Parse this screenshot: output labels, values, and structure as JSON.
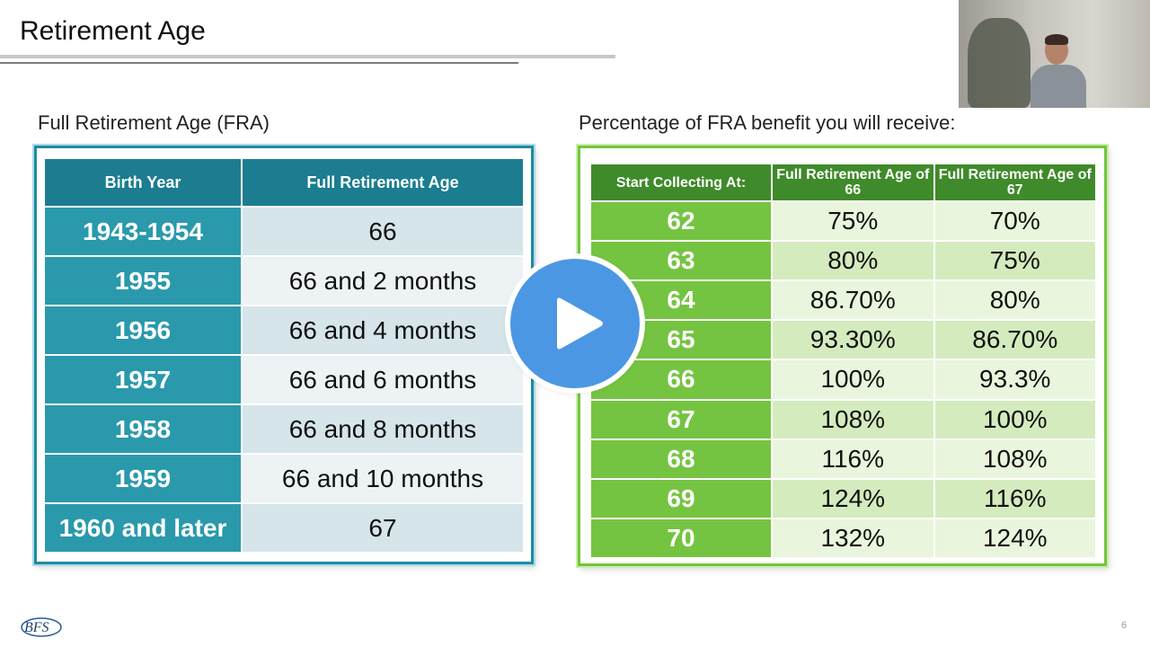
{
  "slide": {
    "title": "Retirement Age",
    "page_number": "6",
    "logo_text": "BFS"
  },
  "fra_section": {
    "heading": "Full Retirement Age (FRA)",
    "columns": [
      "Birth Year",
      "Full Retirement Age"
    ],
    "rows": [
      {
        "birth_year": "1943-1954",
        "fra": "66"
      },
      {
        "birth_year": "1955",
        "fra": "66 and 2 months"
      },
      {
        "birth_year": "1956",
        "fra": "66 and 4 months"
      },
      {
        "birth_year": "1957",
        "fra": "66 and 6 months"
      },
      {
        "birth_year": "1958",
        "fra": "66 and 8 months"
      },
      {
        "birth_year": "1959",
        "fra": "66 and 10 months"
      },
      {
        "birth_year": "1960 and later",
        "fra": "67"
      }
    ]
  },
  "benefit_section": {
    "heading": "Percentage of FRA benefit you will receive:",
    "columns": [
      "Start Collecting At:",
      "Full Retirement Age of 66",
      "Full Retirement Age of 67"
    ],
    "rows": [
      {
        "age": "62",
        "fra66": "75%",
        "fra67": "70%"
      },
      {
        "age": "63",
        "fra66": "80%",
        "fra67": "75%"
      },
      {
        "age": "64",
        "fra66": "86.70%",
        "fra67": "80%"
      },
      {
        "age": "65",
        "fra66": "93.30%",
        "fra67": "86.70%"
      },
      {
        "age": "66",
        "fra66": "100%",
        "fra67": "93.3%"
      },
      {
        "age": "67",
        "fra66": "108%",
        "fra67": "100%"
      },
      {
        "age": "68",
        "fra66": "116%",
        "fra67": "108%"
      },
      {
        "age": "69",
        "fra66": "124%",
        "fra67": "116%"
      },
      {
        "age": "70",
        "fra66": "132%",
        "fra67": "124%"
      }
    ]
  },
  "video": {
    "play_icon": "play-icon",
    "webcam": "presenter-webcam"
  },
  "colors": {
    "teal_header": "#1c7d90",
    "teal_cell": "#2a99ac",
    "green_header": "#3f8a2a",
    "green_cell": "#75c441",
    "play_blue": "#4c97e4"
  }
}
